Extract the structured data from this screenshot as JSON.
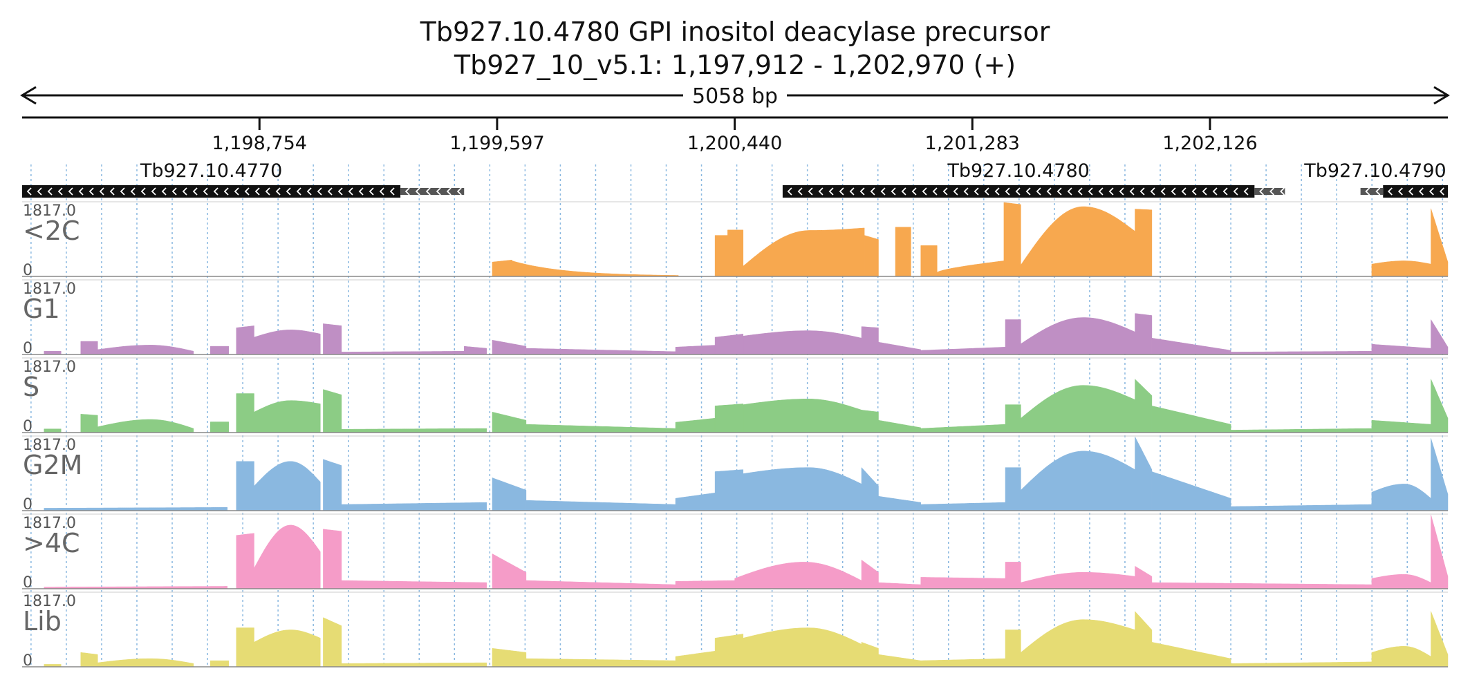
{
  "header": {
    "title_line1": "Tb927.10.4780  GPI inositol deacylase precursor",
    "title_line2": "Tb927_10_v5.1: 1,197,912 - 1,202,970 (+)",
    "span_label": "5058 bp"
  },
  "chart_data": {
    "type": "area",
    "title": "Tb927.10.4780  GPI inositol deacylase precursor",
    "xlim": [
      1197912,
      1202970
    ],
    "xticks": [
      1198754,
      1199597,
      1200440,
      1201283,
      1202126
    ],
    "xtick_labels": [
      "1,198,754",
      "1,199,597",
      "1,200,440",
      "1,201,283",
      "1,202,126"
    ],
    "ylim": [
      0,
      1817.0
    ],
    "ymax_label": "1817.0",
    "ymin_label": "0",
    "genes": [
      {
        "name": "Tb927.10.4770",
        "start": 1197912,
        "end": 1199254,
        "utr_end": 1199480,
        "strand": "-"
      },
      {
        "name": "Tb927.10.4780",
        "start": 1200610,
        "end": 1202284,
        "utr_end": 1202392,
        "strand": "-"
      },
      {
        "name": "Tb927.10.4790",
        "start": 1202740,
        "end": 1202970,
        "utr_start": 1202660,
        "strand": "-"
      }
    ],
    "series": [
      {
        "name": "<2C",
        "color": "#f7a84f",
        "segments": [
          {
            "x0": 1199580,
            "x1": 1199650,
            "v0": 350,
            "v1": 400
          },
          {
            "x0": 1199650,
            "x1": 1200240,
            "v0": 380,
            "v1": 10,
            "shape": "decay"
          },
          {
            "x0": 1200370,
            "x1": 1200415,
            "v0": 1000,
            "v1": 1000
          },
          {
            "x0": 1200415,
            "x1": 1200470,
            "v0": 1130,
            "v1": 1130
          },
          {
            "x0": 1200470,
            "x1": 1200900,
            "v0": 250,
            "v1": 1180,
            "shape": "hump",
            "peak": 1120
          },
          {
            "x0": 1200900,
            "x1": 1200950,
            "v0": 1000,
            "v1": 900
          },
          {
            "x0": 1201010,
            "x1": 1201065,
            "v0": 1200,
            "v1": 1200
          },
          {
            "x0": 1201100,
            "x1": 1201158,
            "v0": 750,
            "v1": 750
          },
          {
            "x0": 1201158,
            "x1": 1201395,
            "v0": 100,
            "v1": 380,
            "shape": "rise"
          },
          {
            "x0": 1201395,
            "x1": 1201455,
            "v0": 1800,
            "v1": 1750
          },
          {
            "x0": 1201455,
            "x1": 1201860,
            "v0": 280,
            "v1": 1100,
            "shape": "hump",
            "peak": 1700
          },
          {
            "x0": 1201860,
            "x1": 1201920,
            "v0": 1640,
            "v1": 1620
          },
          {
            "x0": 1202700,
            "x1": 1202910,
            "v0": 300,
            "v1": 300,
            "shape": "hump",
            "peak": 380
          },
          {
            "x0": 1202910,
            "x1": 1202970,
            "v0": 1650,
            "v1": 350
          }
        ]
      },
      {
        "name": "G1",
        "color": "#bf8fc4",
        "segments": [
          {
            "x0": 1197990,
            "x1": 1198050,
            "v0": 80,
            "v1": 80
          },
          {
            "x0": 1198120,
            "x1": 1198180,
            "v0": 320,
            "v1": 320
          },
          {
            "x0": 1198180,
            "x1": 1198520,
            "v0": 120,
            "v1": 80,
            "shape": "hump",
            "peak": 230
          },
          {
            "x0": 1198580,
            "x1": 1198645,
            "v0": 200,
            "v1": 200
          },
          {
            "x0": 1198672,
            "x1": 1198735,
            "v0": 650,
            "v1": 700
          },
          {
            "x0": 1198735,
            "x1": 1198970,
            "v0": 420,
            "v1": 500,
            "shape": "hump",
            "peak": 600
          },
          {
            "x0": 1198980,
            "x1": 1199045,
            "v0": 750,
            "v1": 700
          },
          {
            "x0": 1199045,
            "x1": 1199480,
            "v0": 60,
            "v1": 80
          },
          {
            "x0": 1199480,
            "x1": 1199560,
            "v0": 200,
            "v1": 150
          },
          {
            "x0": 1199580,
            "x1": 1199700,
            "v0": 350,
            "v1": 200
          },
          {
            "x0": 1199700,
            "x1": 1200230,
            "v0": 150,
            "v1": 70
          },
          {
            "x0": 1200230,
            "x1": 1200440,
            "v0": 180,
            "v1": 250
          },
          {
            "x0": 1200370,
            "x1": 1200470,
            "v0": 420,
            "v1": 500
          },
          {
            "x0": 1200470,
            "x1": 1200890,
            "v0": 450,
            "v1": 400,
            "shape": "hump",
            "peak": 580
          },
          {
            "x0": 1200890,
            "x1": 1200950,
            "v0": 680,
            "v1": 650
          },
          {
            "x0": 1200950,
            "x1": 1201100,
            "v0": 300,
            "v1": 120
          },
          {
            "x0": 1201100,
            "x1": 1201400,
            "v0": 100,
            "v1": 180
          },
          {
            "x0": 1201400,
            "x1": 1201455,
            "v0": 850,
            "v1": 850
          },
          {
            "x0": 1201455,
            "x1": 1201860,
            "v0": 260,
            "v1": 550,
            "shape": "hump",
            "peak": 900
          },
          {
            "x0": 1201860,
            "x1": 1201920,
            "v0": 1000,
            "v1": 950
          },
          {
            "x0": 1201920,
            "x1": 1202200,
            "v0": 400,
            "v1": 100
          },
          {
            "x0": 1202200,
            "x1": 1202700,
            "v0": 60,
            "v1": 80
          },
          {
            "x0": 1202700,
            "x1": 1202910,
            "v0": 250,
            "v1": 150
          },
          {
            "x0": 1202910,
            "x1": 1202970,
            "v0": 850,
            "v1": 180
          }
        ]
      },
      {
        "name": "S",
        "color": "#8ccc85",
        "segments": [
          {
            "x0": 1197990,
            "x1": 1198050,
            "v0": 90,
            "v1": 90
          },
          {
            "x0": 1198120,
            "x1": 1198180,
            "v0": 450,
            "v1": 420
          },
          {
            "x0": 1198180,
            "x1": 1198520,
            "v0": 140,
            "v1": 100,
            "shape": "hump",
            "peak": 320
          },
          {
            "x0": 1198580,
            "x1": 1198645,
            "v0": 260,
            "v1": 260
          },
          {
            "x0": 1198672,
            "x1": 1198735,
            "v0": 950,
            "v1": 950
          },
          {
            "x0": 1198735,
            "x1": 1198970,
            "v0": 500,
            "v1": 700,
            "shape": "hump",
            "peak": 780
          },
          {
            "x0": 1198980,
            "x1": 1199045,
            "v0": 1050,
            "v1": 920
          },
          {
            "x0": 1199045,
            "x1": 1199560,
            "v0": 80,
            "v1": 100
          },
          {
            "x0": 1199580,
            "x1": 1199700,
            "v0": 500,
            "v1": 300
          },
          {
            "x0": 1199700,
            "x1": 1200230,
            "v0": 200,
            "v1": 100
          },
          {
            "x0": 1200230,
            "x1": 1200440,
            "v0": 250,
            "v1": 400
          },
          {
            "x0": 1200370,
            "x1": 1200470,
            "v0": 650,
            "v1": 700
          },
          {
            "x0": 1200470,
            "x1": 1200890,
            "v0": 680,
            "v1": 550,
            "shape": "hump",
            "peak": 820
          },
          {
            "x0": 1200890,
            "x1": 1200950,
            "v0": 550,
            "v1": 500
          },
          {
            "x0": 1200950,
            "x1": 1201100,
            "v0": 300,
            "v1": 120
          },
          {
            "x0": 1201100,
            "x1": 1201400,
            "v0": 100,
            "v1": 200
          },
          {
            "x0": 1201400,
            "x1": 1201455,
            "v0": 680,
            "v1": 680
          },
          {
            "x0": 1201455,
            "x1": 1201860,
            "v0": 350,
            "v1": 800,
            "shape": "hump",
            "peak": 1150
          },
          {
            "x0": 1201860,
            "x1": 1201920,
            "v0": 1300,
            "v1": 900
          },
          {
            "x0": 1201920,
            "x1": 1202200,
            "v0": 650,
            "v1": 200
          },
          {
            "x0": 1202200,
            "x1": 1202700,
            "v0": 60,
            "v1": 100
          },
          {
            "x0": 1202700,
            "x1": 1202910,
            "v0": 300,
            "v1": 200
          },
          {
            "x0": 1202910,
            "x1": 1202970,
            "v0": 1300,
            "v1": 350
          }
        ]
      },
      {
        "name": "G2M",
        "color": "#8ab8e0",
        "segments": [
          {
            "x0": 1197990,
            "x1": 1198640,
            "v0": 60,
            "v1": 80
          },
          {
            "x0": 1198672,
            "x1": 1198735,
            "v0": 1200,
            "v1": 1200
          },
          {
            "x0": 1198735,
            "x1": 1198970,
            "v0": 600,
            "v1": 700,
            "shape": "hump",
            "peak": 1200
          },
          {
            "x0": 1198980,
            "x1": 1199045,
            "v0": 1250,
            "v1": 1100
          },
          {
            "x0": 1199045,
            "x1": 1199560,
            "v0": 150,
            "v1": 200
          },
          {
            "x0": 1199580,
            "x1": 1199700,
            "v0": 800,
            "v1": 500
          },
          {
            "x0": 1199700,
            "x1": 1200230,
            "v0": 250,
            "v1": 150
          },
          {
            "x0": 1200230,
            "x1": 1200440,
            "v0": 300,
            "v1": 500
          },
          {
            "x0": 1200370,
            "x1": 1200470,
            "v0": 950,
            "v1": 1000
          },
          {
            "x0": 1200470,
            "x1": 1200890,
            "v0": 900,
            "v1": 650,
            "shape": "hump",
            "peak": 1050
          },
          {
            "x0": 1200890,
            "x1": 1200950,
            "v0": 1050,
            "v1": 600
          },
          {
            "x0": 1200950,
            "x1": 1201100,
            "v0": 350,
            "v1": 200
          },
          {
            "x0": 1201100,
            "x1": 1201400,
            "v0": 150,
            "v1": 200
          },
          {
            "x0": 1201400,
            "x1": 1201455,
            "v0": 1050,
            "v1": 1050
          },
          {
            "x0": 1201455,
            "x1": 1201860,
            "v0": 500,
            "v1": 1000,
            "shape": "hump",
            "peak": 1450
          },
          {
            "x0": 1201860,
            "x1": 1201920,
            "v0": 1800,
            "v1": 1000
          },
          {
            "x0": 1201920,
            "x1": 1202200,
            "v0": 950,
            "v1": 300
          },
          {
            "x0": 1202200,
            "x1": 1202700,
            "v0": 100,
            "v1": 150
          },
          {
            "x0": 1202700,
            "x1": 1202910,
            "v0": 450,
            "v1": 300,
            "shape": "hump",
            "peak": 650
          },
          {
            "x0": 1202910,
            "x1": 1202970,
            "v0": 1760,
            "v1": 400
          }
        ]
      },
      {
        "name": ">4C",
        "color": "#f59cc8",
        "segments": [
          {
            "x0": 1197990,
            "x1": 1198640,
            "v0": 40,
            "v1": 60
          },
          {
            "x0": 1198672,
            "x1": 1198735,
            "v0": 1300,
            "v1": 1350
          },
          {
            "x0": 1198735,
            "x1": 1198970,
            "v0": 500,
            "v1": 900,
            "shape": "hump",
            "peak": 1550
          },
          {
            "x0": 1198980,
            "x1": 1199045,
            "v0": 1450,
            "v1": 1400
          },
          {
            "x0": 1199045,
            "x1": 1199560,
            "v0": 200,
            "v1": 150
          },
          {
            "x0": 1199580,
            "x1": 1199700,
            "v0": 850,
            "v1": 400
          },
          {
            "x0": 1199700,
            "x1": 1200230,
            "v0": 200,
            "v1": 100
          },
          {
            "x0": 1200230,
            "x1": 1200440,
            "v0": 180,
            "v1": 200
          },
          {
            "x0": 1200440,
            "x1": 1200890,
            "v0": 250,
            "v1": 200,
            "shape": "hump",
            "peak": 650
          },
          {
            "x0": 1200890,
            "x1": 1200950,
            "v0": 700,
            "v1": 400
          },
          {
            "x0": 1200950,
            "x1": 1201100,
            "v0": 150,
            "v1": 100
          },
          {
            "x0": 1201100,
            "x1": 1201400,
            "v0": 280,
            "v1": 250
          },
          {
            "x0": 1201400,
            "x1": 1201455,
            "v0": 650,
            "v1": 650
          },
          {
            "x0": 1201455,
            "x1": 1201860,
            "v0": 150,
            "v1": 300,
            "shape": "hump",
            "peak": 400
          },
          {
            "x0": 1201860,
            "x1": 1201920,
            "v0": 550,
            "v1": 300
          },
          {
            "x0": 1201920,
            "x1": 1202700,
            "v0": 150,
            "v1": 100
          },
          {
            "x0": 1202700,
            "x1": 1202910,
            "v0": 250,
            "v1": 150,
            "shape": "hump",
            "peak": 350
          },
          {
            "x0": 1202910,
            "x1": 1202970,
            "v0": 1800,
            "v1": 300
          }
        ]
      },
      {
        "name": "Lib",
        "color": "#e6dc74",
        "segments": [
          {
            "x0": 1197990,
            "x1": 1198050,
            "v0": 60,
            "v1": 60
          },
          {
            "x0": 1198120,
            "x1": 1198180,
            "v0": 350,
            "v1": 300
          },
          {
            "x0": 1198180,
            "x1": 1198520,
            "v0": 100,
            "v1": 80,
            "shape": "hump",
            "peak": 200
          },
          {
            "x0": 1198580,
            "x1": 1198645,
            "v0": 150,
            "v1": 150
          },
          {
            "x0": 1198672,
            "x1": 1198735,
            "v0": 950,
            "v1": 950
          },
          {
            "x0": 1198735,
            "x1": 1198970,
            "v0": 600,
            "v1": 700,
            "shape": "hump",
            "peak": 900
          },
          {
            "x0": 1198980,
            "x1": 1199045,
            "v0": 1200,
            "v1": 1000
          },
          {
            "x0": 1199045,
            "x1": 1199560,
            "v0": 80,
            "v1": 100
          },
          {
            "x0": 1199580,
            "x1": 1199700,
            "v0": 450,
            "v1": 350
          },
          {
            "x0": 1199700,
            "x1": 1200230,
            "v0": 200,
            "v1": 150
          },
          {
            "x0": 1200230,
            "x1": 1200440,
            "v0": 250,
            "v1": 450
          },
          {
            "x0": 1200370,
            "x1": 1200470,
            "v0": 700,
            "v1": 800
          },
          {
            "x0": 1200470,
            "x1": 1200890,
            "v0": 700,
            "v1": 550,
            "shape": "hump",
            "peak": 950
          },
          {
            "x0": 1200890,
            "x1": 1200950,
            "v0": 600,
            "v1": 450
          },
          {
            "x0": 1200950,
            "x1": 1201100,
            "v0": 300,
            "v1": 150
          },
          {
            "x0": 1201100,
            "x1": 1201400,
            "v0": 150,
            "v1": 200
          },
          {
            "x0": 1201400,
            "x1": 1201455,
            "v0": 900,
            "v1": 900
          },
          {
            "x0": 1201455,
            "x1": 1201860,
            "v0": 350,
            "v1": 900,
            "shape": "hump",
            "peak": 1150
          },
          {
            "x0": 1201860,
            "x1": 1201920,
            "v0": 1350,
            "v1": 900
          },
          {
            "x0": 1201920,
            "x1": 1202200,
            "v0": 600,
            "v1": 200
          },
          {
            "x0": 1202200,
            "x1": 1202700,
            "v0": 80,
            "v1": 120
          },
          {
            "x0": 1202700,
            "x1": 1202910,
            "v0": 350,
            "v1": 250,
            "shape": "hump",
            "peak": 500
          },
          {
            "x0": 1202910,
            "x1": 1202970,
            "v0": 1350,
            "v1": 300
          }
        ]
      }
    ]
  }
}
